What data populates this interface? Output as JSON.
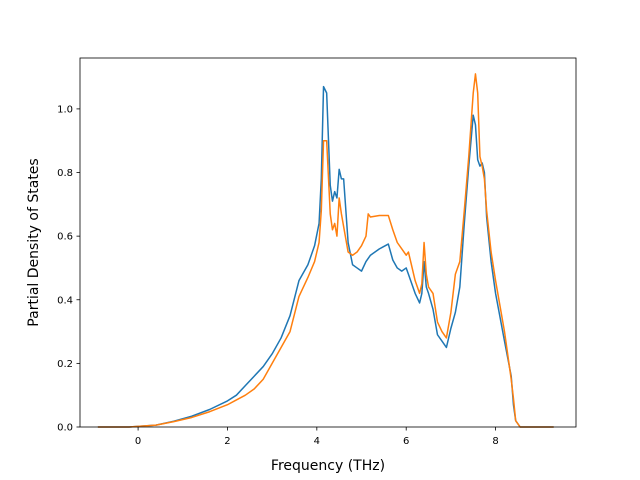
{
  "chart_data": {
    "type": "line",
    "title": "",
    "xlabel": "Frequency (THz)",
    "ylabel": "Partial Density of States",
    "xlim": [
      -1.3,
      9.8
    ],
    "ylim": [
      0.0,
      1.16
    ],
    "xticks": [
      0,
      2,
      4,
      6,
      8
    ],
    "xtick_labels": [
      "0",
      "2",
      "4",
      "6",
      "8"
    ],
    "yticks": [
      0.0,
      0.2,
      0.4,
      0.6,
      0.8,
      1.0
    ],
    "ytick_labels": [
      "0.0",
      "0.2",
      "0.4",
      "0.6",
      "0.8",
      "1.0"
    ],
    "grid": false,
    "legend": "none",
    "series": [
      {
        "color": "#1f77b4",
        "x": [
          -0.9,
          -0.2,
          0.0,
          0.4,
          0.8,
          1.2,
          1.6,
          2.0,
          2.2,
          2.4,
          2.6,
          2.8,
          3.0,
          3.2,
          3.4,
          3.6,
          3.8,
          3.95,
          4.05,
          4.1,
          4.15,
          4.22,
          4.3,
          4.35,
          4.4,
          4.45,
          4.5,
          4.55,
          4.6,
          4.7,
          4.8,
          4.9,
          5.0,
          5.1,
          5.2,
          5.4,
          5.6,
          5.7,
          5.8,
          5.9,
          6.0,
          6.05,
          6.1,
          6.2,
          6.3,
          6.35,
          6.4,
          6.45,
          6.5,
          6.6,
          6.7,
          6.8,
          6.9,
          7.0,
          7.1,
          7.2,
          7.3,
          7.4,
          7.5,
          7.55,
          7.6,
          7.65,
          7.7,
          7.75,
          7.8,
          7.9,
          8.0,
          8.2,
          8.35,
          8.4,
          8.45,
          8.55,
          9.3
        ],
        "y": [
          0.0,
          0.0,
          0.002,
          0.006,
          0.018,
          0.034,
          0.055,
          0.082,
          0.1,
          0.13,
          0.16,
          0.19,
          0.23,
          0.28,
          0.35,
          0.46,
          0.51,
          0.57,
          0.64,
          0.78,
          1.07,
          1.05,
          0.76,
          0.71,
          0.74,
          0.72,
          0.81,
          0.78,
          0.78,
          0.58,
          0.51,
          0.5,
          0.49,
          0.52,
          0.54,
          0.56,
          0.575,
          0.525,
          0.5,
          0.49,
          0.5,
          0.48,
          0.46,
          0.42,
          0.39,
          0.42,
          0.52,
          0.44,
          0.42,
          0.37,
          0.29,
          0.27,
          0.25,
          0.31,
          0.36,
          0.44,
          0.64,
          0.82,
          0.98,
          0.95,
          0.84,
          0.82,
          0.83,
          0.8,
          0.66,
          0.52,
          0.42,
          0.27,
          0.16,
          0.07,
          0.02,
          0.0,
          0.0
        ]
      },
      {
        "color": "#ff7f0e",
        "x": [
          -0.9,
          -0.2,
          0.0,
          0.4,
          0.8,
          1.2,
          1.6,
          2.0,
          2.2,
          2.4,
          2.6,
          2.8,
          3.0,
          3.2,
          3.4,
          3.6,
          3.8,
          3.95,
          4.05,
          4.1,
          4.15,
          4.22,
          4.3,
          4.35,
          4.4,
          4.45,
          4.5,
          4.55,
          4.6,
          4.7,
          4.8,
          4.9,
          5.0,
          5.1,
          5.15,
          5.2,
          5.4,
          5.6,
          5.7,
          5.8,
          5.9,
          6.0,
          6.05,
          6.1,
          6.2,
          6.3,
          6.35,
          6.4,
          6.45,
          6.5,
          6.6,
          6.7,
          6.8,
          6.9,
          7.0,
          7.1,
          7.2,
          7.3,
          7.4,
          7.5,
          7.55,
          7.6,
          7.65,
          7.7,
          7.75,
          7.8,
          7.9,
          8.0,
          8.2,
          8.35,
          8.4,
          8.45,
          8.55,
          9.3
        ],
        "y": [
          0.0,
          0.0,
          0.002,
          0.006,
          0.017,
          0.03,
          0.048,
          0.07,
          0.085,
          0.1,
          0.12,
          0.15,
          0.2,
          0.25,
          0.3,
          0.41,
          0.47,
          0.52,
          0.58,
          0.68,
          0.9,
          0.9,
          0.67,
          0.62,
          0.64,
          0.6,
          0.72,
          0.67,
          0.63,
          0.55,
          0.54,
          0.55,
          0.57,
          0.6,
          0.67,
          0.66,
          0.665,
          0.665,
          0.62,
          0.58,
          0.56,
          0.54,
          0.55,
          0.52,
          0.46,
          0.42,
          0.45,
          0.58,
          0.48,
          0.44,
          0.42,
          0.33,
          0.3,
          0.28,
          0.36,
          0.48,
          0.52,
          0.68,
          0.85,
          1.05,
          1.11,
          1.05,
          0.85,
          0.82,
          0.78,
          0.68,
          0.55,
          0.46,
          0.3,
          0.15,
          0.09,
          0.02,
          0.0,
          0.0
        ]
      }
    ]
  }
}
